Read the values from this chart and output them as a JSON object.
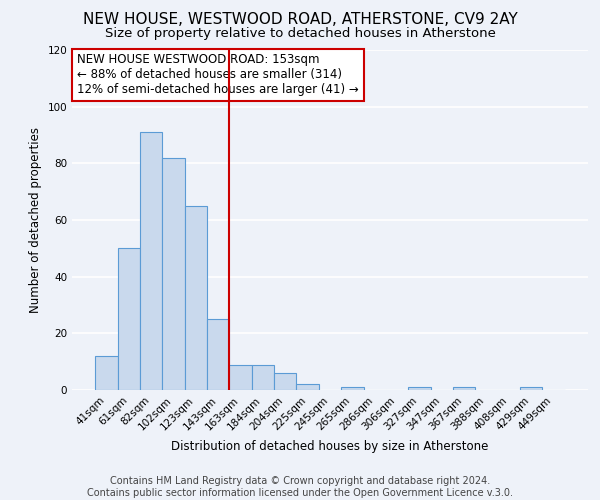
{
  "title": "NEW HOUSE, WESTWOOD ROAD, ATHERSTONE, CV9 2AY",
  "subtitle": "Size of property relative to detached houses in Atherstone",
  "xlabel": "Distribution of detached houses by size in Atherstone",
  "ylabel": "Number of detached properties",
  "bar_labels": [
    "41sqm",
    "61sqm",
    "82sqm",
    "102sqm",
    "123sqm",
    "143sqm",
    "163sqm",
    "184sqm",
    "204sqm",
    "225sqm",
    "245sqm",
    "265sqm",
    "286sqm",
    "306sqm",
    "327sqm",
    "347sqm",
    "367sqm",
    "388sqm",
    "408sqm",
    "429sqm",
    "449sqm"
  ],
  "bar_heights": [
    12,
    50,
    91,
    82,
    65,
    25,
    9,
    9,
    6,
    2,
    0,
    1,
    0,
    0,
    1,
    0,
    1,
    0,
    0,
    1,
    0
  ],
  "bar_color": "#c9d9ed",
  "bar_edge_color": "#5b9bd5",
  "vline_x": 5.5,
  "vline_color": "#cc0000",
  "ylim": [
    0,
    120
  ],
  "yticks": [
    0,
    20,
    40,
    60,
    80,
    100,
    120
  ],
  "annotation_lines": [
    "NEW HOUSE WESTWOOD ROAD: 153sqm",
    "← 88% of detached houses are smaller (314)",
    "12% of semi-detached houses are larger (41) →"
  ],
  "footer_lines": [
    "Contains HM Land Registry data © Crown copyright and database right 2024.",
    "Contains public sector information licensed under the Open Government Licence v.3.0."
  ],
  "background_color": "#eef2f9",
  "plot_bg_color": "#eef2f9",
  "grid_color": "#ffffff",
  "title_fontsize": 11,
  "subtitle_fontsize": 9.5,
  "footer_fontsize": 7,
  "annotation_fontsize": 8.5,
  "axis_label_fontsize": 8.5,
  "tick_fontsize": 7.5
}
